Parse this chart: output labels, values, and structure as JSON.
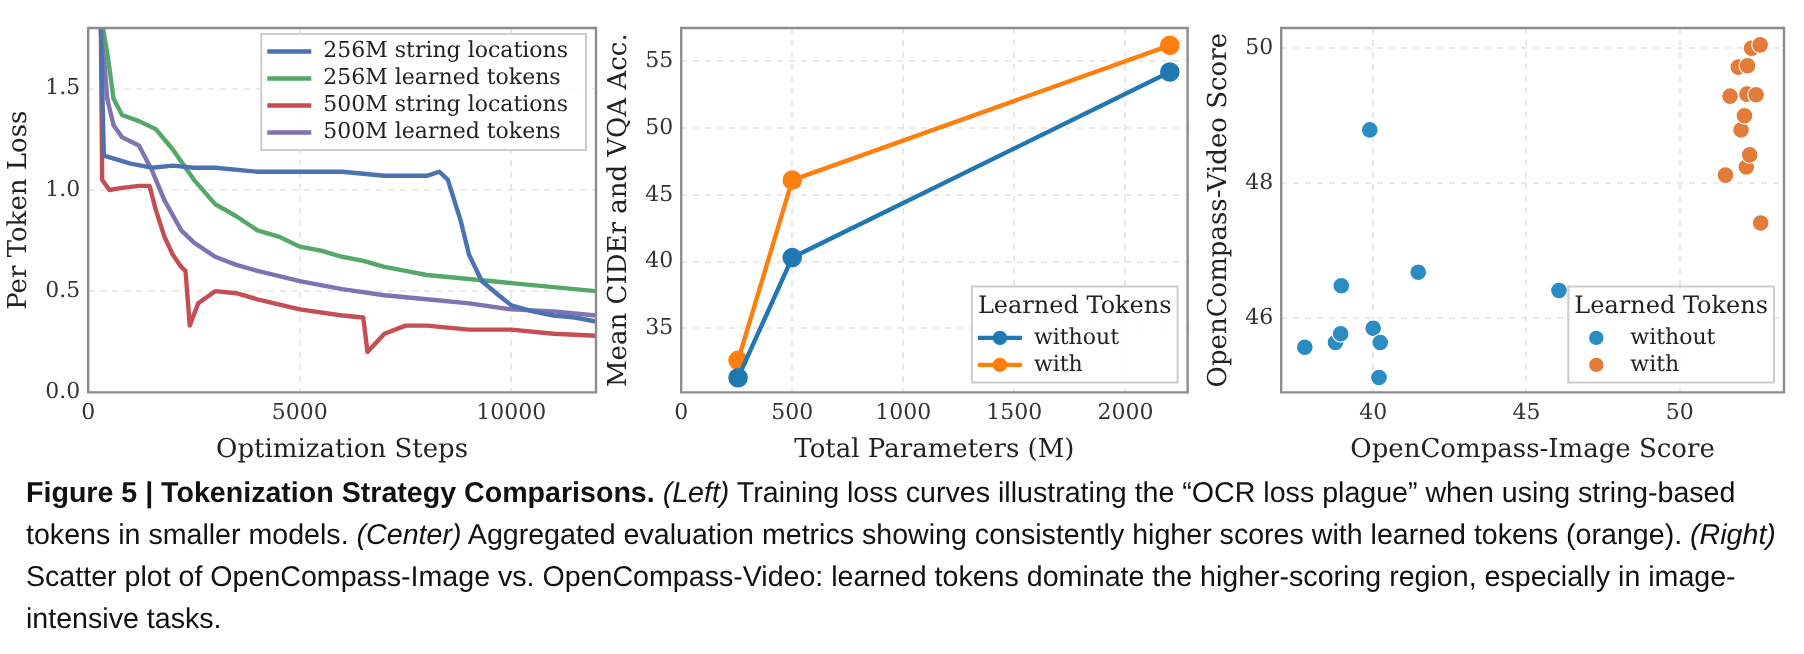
{
  "chart_data": [
    {
      "type": "line",
      "xlabel": "Optimization Steps",
      "ylabel": "Per Token Loss",
      "xlim": [
        0,
        12000
      ],
      "ylim": [
        0,
        1.8
      ],
      "xticks": [
        0,
        5000,
        10000
      ],
      "yticks": [
        {
          "value": 0,
          "label": "0.0"
        },
        {
          "value": 0.5,
          "label": "0.5"
        },
        {
          "value": 1,
          "label": "1.0"
        },
        {
          "value": 1.5,
          "label": "1.5"
        }
      ],
      "grid": true,
      "legend": "top right",
      "marker": "none",
      "series": [
        {
          "name": "256M string locations",
          "color": "#4c72b0",
          "x": [
            300,
            370,
            1000,
            1500,
            2000,
            2500,
            3000,
            4000,
            5000,
            6000,
            7000,
            8000,
            8300,
            8500,
            8800,
            9000,
            9300,
            9700,
            10000,
            10500,
            11000,
            11500,
            12000
          ],
          "values": [
            1.8,
            1.17,
            1.13,
            1.11,
            1.12,
            1.11,
            1.11,
            1.09,
            1.09,
            1.09,
            1.07,
            1.07,
            1.09,
            1.05,
            0.85,
            0.68,
            0.55,
            0.48,
            0.43,
            0.4,
            0.38,
            0.37,
            0.35
          ]
        },
        {
          "name": "256M learned tokens",
          "color": "#55a868",
          "x": [
            350,
            470,
            600,
            800,
            1200,
            1600,
            2000,
            2500,
            3000,
            3500,
            4000,
            4500,
            5000,
            5500,
            6000,
            6500,
            7000,
            7500,
            8000,
            8500,
            9000,
            9500,
            10000,
            11000,
            12000
          ],
          "values": [
            1.8,
            1.65,
            1.45,
            1.37,
            1.34,
            1.3,
            1.2,
            1.05,
            0.93,
            0.87,
            0.8,
            0.77,
            0.72,
            0.7,
            0.67,
            0.65,
            0.62,
            0.6,
            0.58,
            0.57,
            0.56,
            0.55,
            0.54,
            0.52,
            0.5
          ]
        },
        {
          "name": "500M string locations",
          "color": "#c44e52",
          "x": [
            300,
            330,
            500,
            800,
            1200,
            1450,
            1600,
            1800,
            2000,
            2200,
            2300,
            2400,
            2600,
            3000,
            3500,
            4000,
            5000,
            6000,
            6500,
            6600,
            7000,
            7500,
            8000,
            9000,
            10000,
            11000,
            12000
          ],
          "values": [
            1.8,
            1.05,
            1.0,
            1.01,
            1.02,
            1.02,
            0.9,
            0.77,
            0.68,
            0.62,
            0.6,
            0.33,
            0.44,
            0.5,
            0.49,
            0.46,
            0.41,
            0.38,
            0.37,
            0.2,
            0.29,
            0.33,
            0.33,
            0.31,
            0.31,
            0.29,
            0.28
          ]
        },
        {
          "name": "500M learned tokens",
          "color": "#8172b3",
          "x": [
            320,
            450,
            600,
            800,
            1200,
            1500,
            1800,
            2200,
            2500,
            3000,
            3500,
            4000,
            5000,
            6000,
            7000,
            8000,
            9000,
            10000,
            11000,
            12000
          ],
          "values": [
            1.8,
            1.45,
            1.32,
            1.26,
            1.22,
            1.1,
            0.95,
            0.8,
            0.74,
            0.67,
            0.63,
            0.6,
            0.55,
            0.51,
            0.48,
            0.46,
            0.44,
            0.41,
            0.4,
            0.38
          ]
        }
      ],
      "annotations": [
        "Figure 5 | Tokenization Strategy Comparisons.",
        "(Left) Training loss curves illustrating the “OCR loss plague” when using string-based tokens in smaller models.",
        "(Center) Aggregated evaluation metrics showing consistently higher scores with learned tokens (orange).",
        "(Right) Scatter plot of OpenCompass-Image vs. OpenCompass-Video: learned tokens dominate the higher-scoring region, especially in image-intensive tasks."
      ]
    },
    {
      "type": "line",
      "xlabel": "Total Parameters (M)",
      "ylabel": "Mean CIDEr and VQA Acc.",
      "xlim": [
        0,
        2280
      ],
      "ylim": [
        30.2,
        57.5
      ],
      "xticks": [
        0,
        500,
        1000,
        1500,
        2000
      ],
      "yticks": [
        35,
        40,
        45,
        50,
        55
      ],
      "grid": true,
      "legend": "bottom right",
      "legend_title": "Learned Tokens",
      "marker": "circle",
      "x": [
        256,
        500,
        2200
      ],
      "series": [
        {
          "name": "without",
          "color": "#1f77b4",
          "values": [
            31.3,
            40.3,
            54.2
          ]
        },
        {
          "name": "with",
          "color": "#ff7f0e",
          "values": [
            32.6,
            46.1,
            56.2
          ]
        }
      ]
    },
    {
      "type": "scatter",
      "xlabel": "OpenCompass-Image Score",
      "ylabel": "OpenCompass-Video Score",
      "xlim": [
        37,
        53.4
      ],
      "ylim": [
        44.9,
        50.3
      ],
      "xticks": [
        40,
        45,
        50
      ],
      "yticks": [
        46,
        48,
        50
      ],
      "grid": true,
      "legend": "bottom right",
      "legend_title": "Learned Tokens",
      "marker": "circle",
      "series": [
        {
          "name": "without",
          "color": "#2a8cc2",
          "x": [
            37.77,
            38.77,
            38.94,
            38.96,
            39.89,
            40.0,
            40.23,
            40.19,
            41.47,
            46.06
          ],
          "values": [
            45.57,
            45.64,
            45.77,
            46.48,
            48.79,
            45.85,
            45.64,
            45.12,
            46.68,
            46.41
          ]
        },
        {
          "name": "with",
          "color": "#e37b39",
          "x": [
            51.49,
            51.64,
            51.91,
            52.0,
            52.11,
            52.17,
            52.19,
            52.21,
            52.28,
            52.34,
            52.49,
            52.62,
            52.64
          ],
          "values": [
            48.12,
            49.29,
            49.72,
            48.79,
            49.0,
            48.24,
            49.32,
            49.74,
            48.42,
            50.0,
            49.31,
            50.05,
            47.41
          ]
        }
      ]
    }
  ]
}
